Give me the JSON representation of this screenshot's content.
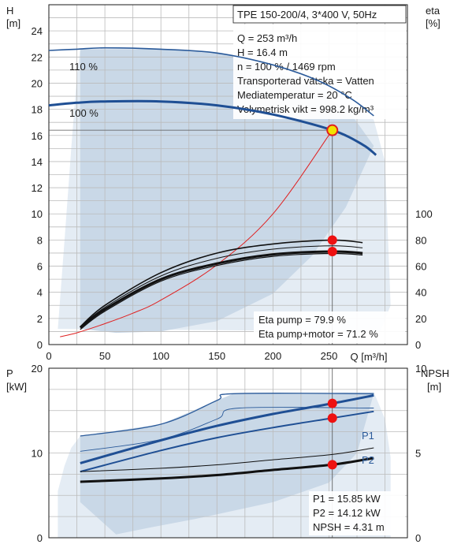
{
  "chart_data": [
    {
      "type": "line",
      "title": "TPE 150-200/4, 3*400 V, 50Hz",
      "xlabel": "Q [m³/h]",
      "ylabel_left": [
        "H",
        "[m]"
      ],
      "ylabel_right": [
        "eta",
        "[%]"
      ],
      "xlim": [
        0,
        320
      ],
      "ylim_left": [
        0,
        26
      ],
      "ylim_right": [
        0,
        260
      ],
      "x_ticks": [
        "0",
        "50",
        "100",
        "150",
        "200",
        "250"
      ],
      "y_ticks_left": [
        "0",
        "2",
        "4",
        "6",
        "8",
        "10",
        "12",
        "14",
        "16",
        "18",
        "20",
        "22",
        "24"
      ],
      "y_ticks_right": [
        "0",
        "20",
        "40",
        "60",
        "80",
        "100"
      ],
      "grid": true,
      "speed_labels": [
        "110 %",
        "100 %"
      ],
      "info_lines": [
        "Q = 253 m³/h",
        "H = 16.4 m",
        "n = 100 % / 1469 rpm",
        "Transporterad vätska = Vatten",
        "Mediatemperatur = 20 °C",
        "Volymetrisk vikt = 998.2 kg/m³"
      ],
      "eta_lines": [
        "Eta pump = 79.9 %",
        "Eta pump+motor = 71.2 %"
      ],
      "series": [
        {
          "x": [
            0,
            25,
            50,
            100,
            150,
            200,
            240,
            270,
            290
          ],
          "y": [
            22.5,
            22.6,
            22.7,
            22.6,
            22.3,
            21.4,
            20.2,
            18.8,
            17.5
          ]
        },
        {
          "x": [
            0,
            25,
            50,
            100,
            150,
            200,
            253,
            280,
            292
          ],
          "y": [
            18.3,
            18.5,
            18.6,
            18.6,
            18.3,
            17.6,
            16.4,
            15.3,
            14.5
          ]
        },
        {
          "x": [
            10,
            25,
            50,
            75,
            100,
            150,
            200,
            253
          ],
          "y": [
            0.6,
            0.9,
            1.6,
            2.4,
            3.4,
            6.1,
            10.0,
            16.4
          ]
        },
        {
          "x": [
            28,
            50,
            100,
            150,
            200,
            253,
            280
          ],
          "y": [
            13.6,
            30,
            55,
            70,
            77,
            79.9,
            78
          ]
        },
        {
          "x": [
            28,
            50,
            100,
            150,
            200,
            253,
            280
          ],
          "y": [
            13.0,
            27,
            50,
            62,
            69,
            71.2,
            70
          ]
        }
      ],
      "operating_point": {
        "Q": 253,
        "H": 16.4,
        "eta_pump": 79.9,
        "eta_total": 71.2
      }
    },
    {
      "type": "line",
      "xlabel": "",
      "ylabel_left": [
        "P",
        "[kW]"
      ],
      "ylabel_right": [
        "NPSH",
        "[m]"
      ],
      "xlim": [
        0,
        320
      ],
      "ylim_left": [
        0,
        20
      ],
      "ylim_right": [
        0,
        10
      ],
      "y_ticks_left": [
        "0",
        "10",
        "20"
      ],
      "y_ticks_right": [
        "0",
        "5",
        "10"
      ],
      "grid": true,
      "power_labels": [
        "P1",
        "P2"
      ],
      "readout_lines": [
        "P1 = 15.85 kW",
        "P2 = 14.12 kW",
        "NPSH = 4.31 m"
      ],
      "series": [
        {
          "name": "P1",
          "x": [
            28,
            100,
            150,
            200,
            253,
            290
          ],
          "y": [
            8.8,
            11.5,
            13.2,
            14.6,
            15.85,
            16.8
          ]
        },
        {
          "name": "P2",
          "x": [
            28,
            100,
            150,
            200,
            253,
            290
          ],
          "y": [
            7.8,
            10.3,
            11.8,
            13.0,
            14.12,
            14.9
          ]
        },
        {
          "x": [
            28,
            100,
            150,
            200,
            253,
            290
          ],
          "y": [
            3.3,
            3.5,
            3.7,
            4.0,
            4.31,
            4.7
          ]
        }
      ],
      "operating_point": {
        "Q": 253,
        "P1": 15.85,
        "P2": 14.12,
        "NPSH": 4.31
      }
    }
  ]
}
